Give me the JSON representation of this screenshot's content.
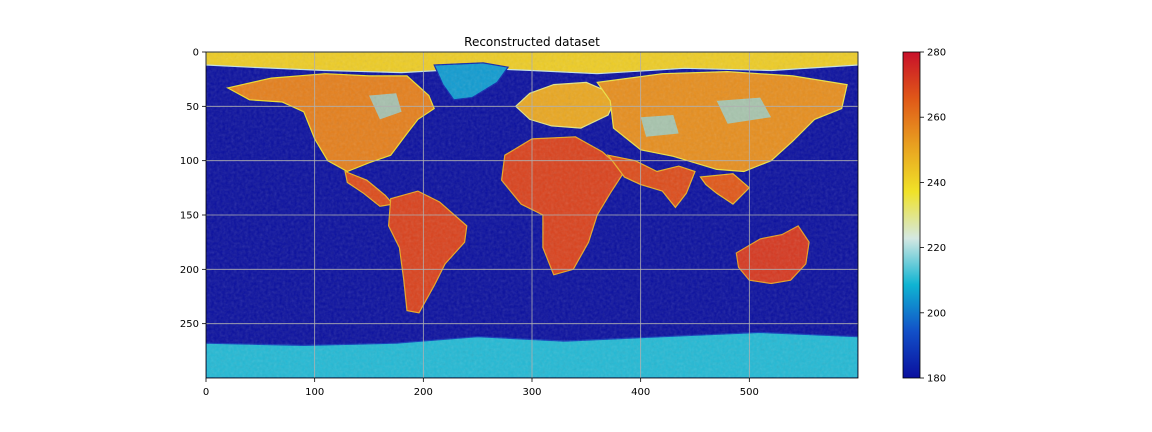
{
  "chart_data": {
    "type": "heatmap",
    "title": "Reconstructed dataset",
    "xlabel": "",
    "ylabel": "",
    "xlim": [
      0,
      600
    ],
    "ylim": [
      300,
      0
    ],
    "x_ticks": [
      0,
      100,
      200,
      300,
      400,
      500
    ],
    "y_ticks": [
      0,
      50,
      100,
      150,
      200,
      250
    ],
    "grid": true,
    "colormap": "jet-like",
    "colorbar": {
      "vmin": 180,
      "vmax": 280,
      "ticks": [
        180,
        200,
        220,
        240,
        260,
        280
      ],
      "stops": [
        "#0a0f9e",
        "#1250c8",
        "#0fb4d2",
        "#d4e8e2",
        "#f0e228",
        "#e8a020",
        "#e05818",
        "#c8102a"
      ]
    },
    "ocean_value": 180,
    "land_regions": [
      {
        "region": "arctic band",
        "value": 242
      },
      {
        "region": "north america",
        "value": 258
      },
      {
        "region": "greenland",
        "value": 205
      },
      {
        "region": "central america",
        "value": 268
      },
      {
        "region": "south america",
        "value": 270
      },
      {
        "region": "europe",
        "value": 250
      },
      {
        "region": "asia",
        "value": 255
      },
      {
        "region": "africa",
        "value": 270
      },
      {
        "region": "arabia / india",
        "value": 268
      },
      {
        "region": "southeast asia",
        "value": 266
      },
      {
        "region": "australia",
        "value": 272
      },
      {
        "region": "antarctica",
        "value": 210
      }
    ]
  }
}
